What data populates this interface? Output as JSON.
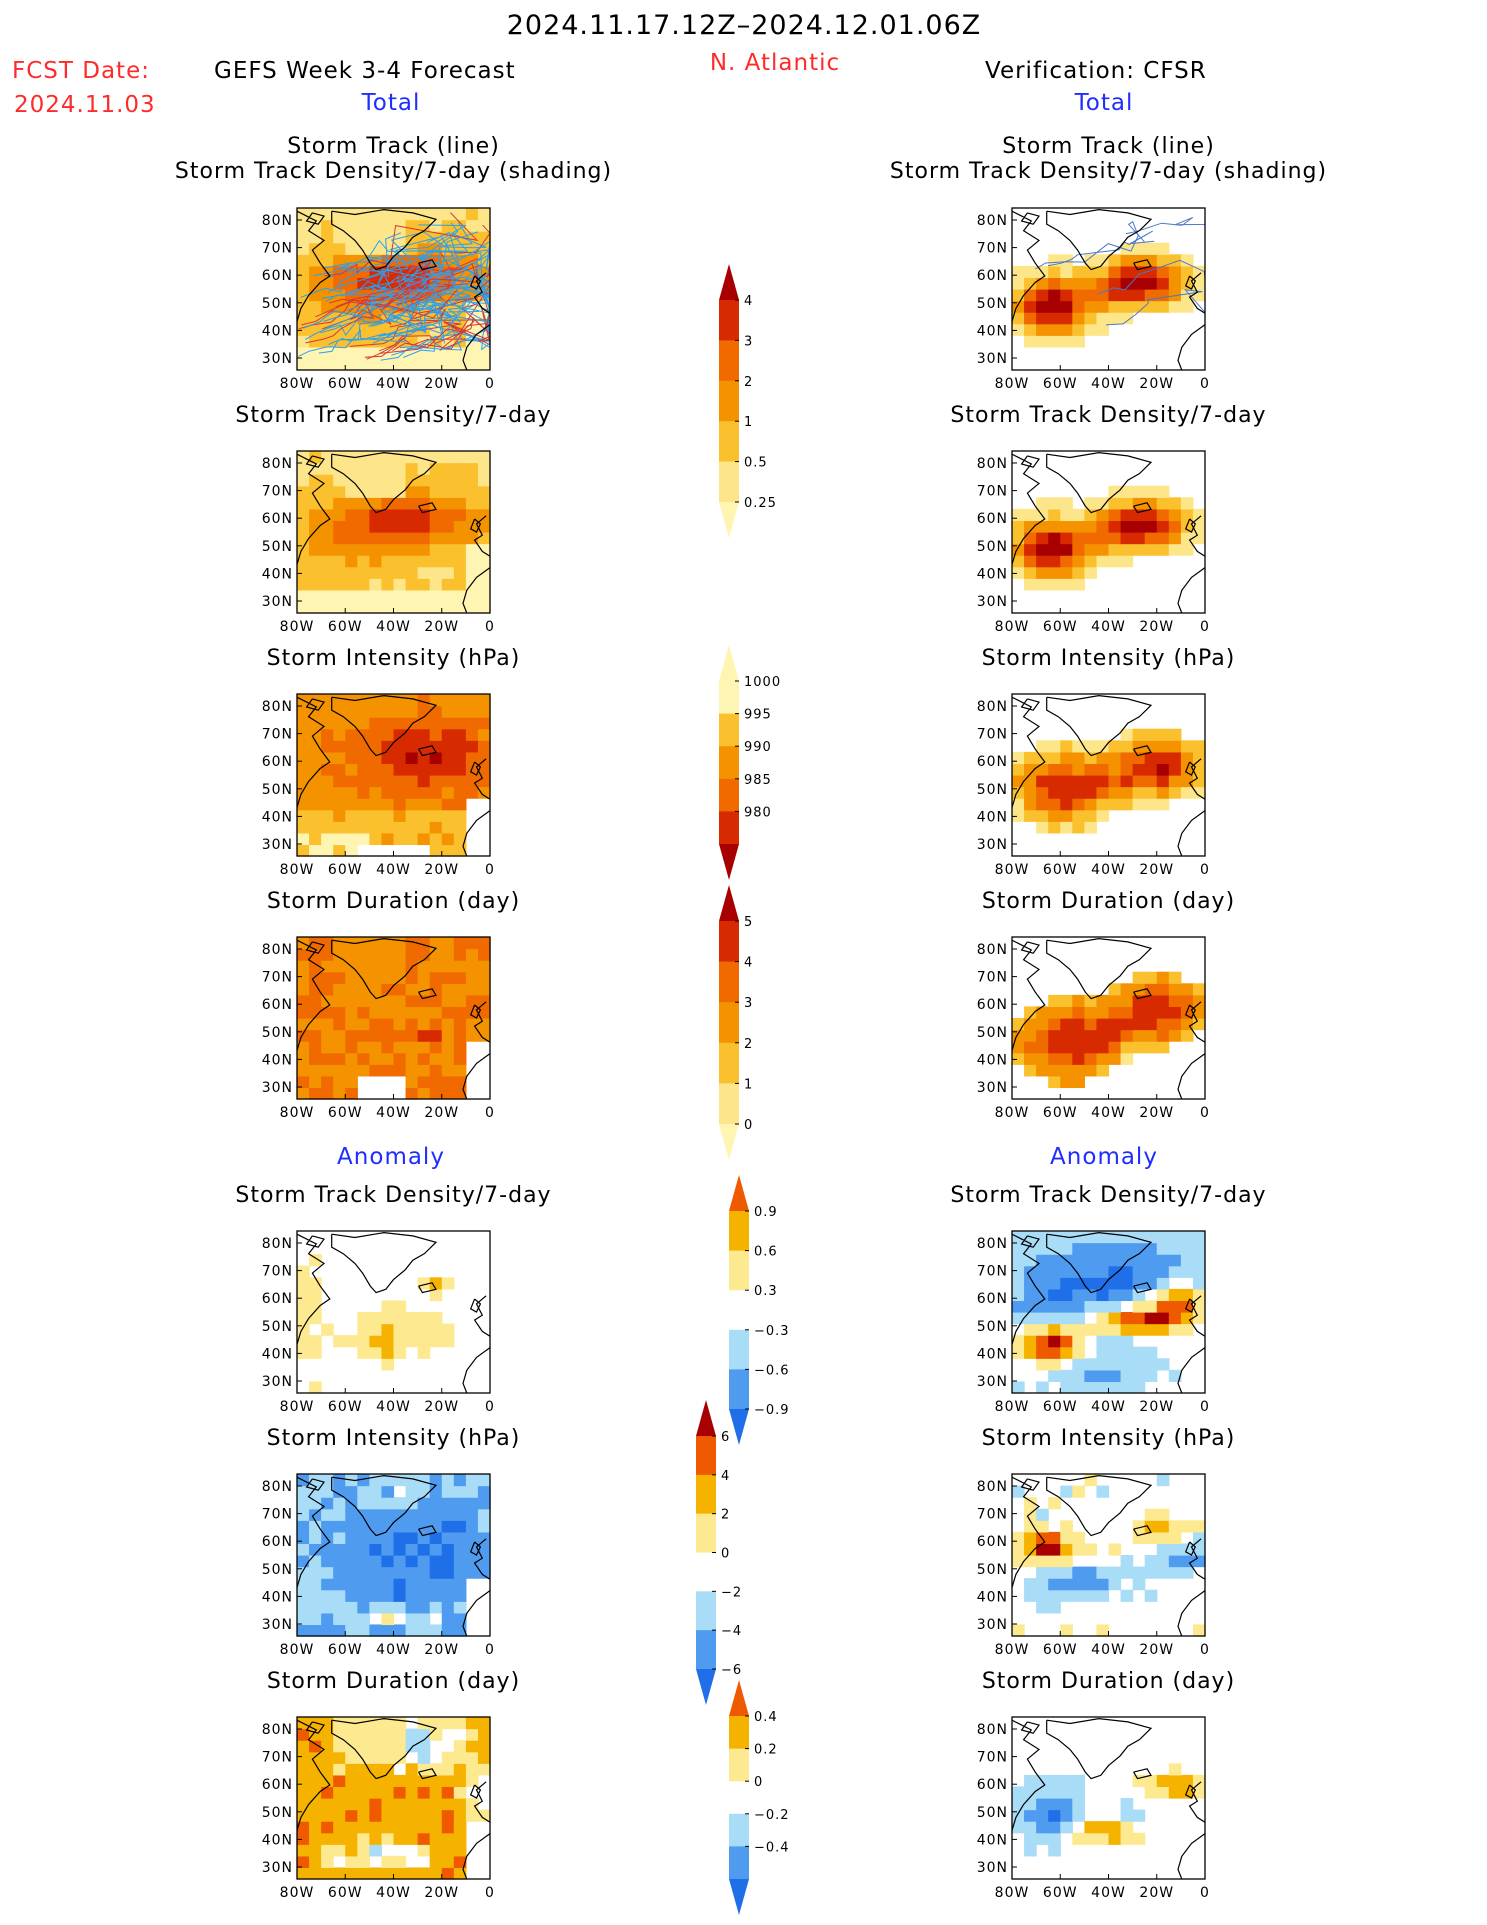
{
  "header": {
    "date_range": "2024.11.17.12Z–2024.12.01.06Z",
    "fcst_date_label": "FCST Date:",
    "fcst_date_value": "2024.11.03",
    "forecast_title": "GEFS Week 3-4 Forecast",
    "region": "N. Atlantic",
    "verification_title": "Verification: CFSR",
    "total_left": "Total",
    "total_right": "Total",
    "anomaly_left": "Anomaly",
    "anomaly_right": "Anomaly"
  },
  "colors": {
    "title_red": "#ff2a2a",
    "subtitle_blue": "#1f2eff",
    "density_scale": [
      "#fff5b3",
      "#fde68a",
      "#fbc02d",
      "#f59200",
      "#f06a00",
      "#d72a00",
      "#a80000"
    ],
    "anomaly_scale": [
      "#1e6fe8",
      "#4f9bf0",
      "#a9dcf7",
      "#ffffff",
      "#fde98f",
      "#f5b300",
      "#ef5a00",
      "#a80000"
    ]
  },
  "chart_data": [
    {
      "type": "heatmap",
      "panel": "forecast_total_track",
      "title": "Storm Track (line)",
      "subtitle": "Storm Track Density/7-day (shading)",
      "xticks": [
        "80W",
        "60W",
        "40W",
        "20W",
        "0"
      ],
      "yticks": [
        "80N",
        "70N",
        "60N",
        "50N",
        "40N",
        "30N"
      ],
      "xlim": [
        -80,
        0
      ],
      "ylim": [
        25,
        85
      ]
    },
    {
      "type": "heatmap",
      "panel": "verif_total_track",
      "title": "Storm Track (line)",
      "subtitle": "Storm Track Density/7-day (shading)",
      "xticks": [
        "80W",
        "60W",
        "40W",
        "20W",
        "0"
      ],
      "yticks": [
        "80N",
        "70N",
        "60N",
        "50N",
        "40N",
        "30N"
      ],
      "xlim": [
        -80,
        0
      ],
      "ylim": [
        25,
        85
      ]
    },
    {
      "type": "heatmap",
      "panel": "forecast_total_density",
      "title": "Storm Track Density/7-day",
      "xticks": [
        "80W",
        "60W",
        "40W",
        "20W",
        "0"
      ],
      "yticks": [
        "80N",
        "70N",
        "60N",
        "50N",
        "40N",
        "30N"
      ],
      "xlim": [
        -80,
        0
      ],
      "ylim": [
        25,
        85
      ]
    },
    {
      "type": "heatmap",
      "panel": "verif_total_density",
      "title": "Storm Track Density/7-day",
      "xticks": [
        "80W",
        "60W",
        "40W",
        "20W",
        "0"
      ],
      "yticks": [
        "80N",
        "70N",
        "60N",
        "50N",
        "40N",
        "30N"
      ],
      "xlim": [
        -80,
        0
      ],
      "ylim": [
        25,
        85
      ]
    },
    {
      "type": "heatmap",
      "panel": "forecast_total_intensity",
      "title": "Storm Intensity (hPa)",
      "xticks": [
        "80W",
        "60W",
        "40W",
        "20W",
        "0"
      ],
      "yticks": [
        "80N",
        "70N",
        "60N",
        "50N",
        "40N",
        "30N"
      ],
      "xlim": [
        -80,
        0
      ],
      "ylim": [
        25,
        85
      ]
    },
    {
      "type": "heatmap",
      "panel": "verif_total_intensity",
      "title": "Storm Intensity (hPa)",
      "xticks": [
        "80W",
        "60W",
        "40W",
        "20W",
        "0"
      ],
      "yticks": [
        "80N",
        "70N",
        "60N",
        "50N",
        "40N",
        "30N"
      ],
      "xlim": [
        -80,
        0
      ],
      "ylim": [
        25,
        85
      ]
    },
    {
      "type": "heatmap",
      "panel": "forecast_total_duration",
      "title": "Storm Duration (day)",
      "xticks": [
        "80W",
        "60W",
        "40W",
        "20W",
        "0"
      ],
      "yticks": [
        "80N",
        "70N",
        "60N",
        "50N",
        "40N",
        "30N"
      ],
      "xlim": [
        -80,
        0
      ],
      "ylim": [
        25,
        85
      ]
    },
    {
      "type": "heatmap",
      "panel": "verif_total_duration",
      "title": "Storm Duration (day)",
      "xticks": [
        "80W",
        "60W",
        "40W",
        "20W",
        "0"
      ],
      "yticks": [
        "80N",
        "70N",
        "60N",
        "50N",
        "40N",
        "30N"
      ],
      "xlim": [
        -80,
        0
      ],
      "ylim": [
        25,
        85
      ]
    },
    {
      "type": "heatmap",
      "panel": "forecast_anom_density",
      "title": "Storm Track Density/7-day",
      "xticks": [
        "80W",
        "60W",
        "40W",
        "20W",
        "0"
      ],
      "yticks": [
        "80N",
        "70N",
        "60N",
        "50N",
        "40N",
        "30N"
      ],
      "xlim": [
        -80,
        0
      ],
      "ylim": [
        25,
        85
      ]
    },
    {
      "type": "heatmap",
      "panel": "verif_anom_density",
      "title": "Storm Track Density/7-day",
      "xticks": [
        "80W",
        "60W",
        "40W",
        "20W",
        "0"
      ],
      "yticks": [
        "80N",
        "70N",
        "60N",
        "50N",
        "40N",
        "30N"
      ],
      "xlim": [
        -80,
        0
      ],
      "ylim": [
        25,
        85
      ]
    },
    {
      "type": "heatmap",
      "panel": "forecast_anom_intensity",
      "title": "Storm Intensity (hPa)",
      "xticks": [
        "80W",
        "60W",
        "40W",
        "20W",
        "0"
      ],
      "yticks": [
        "80N",
        "70N",
        "60N",
        "50N",
        "40N",
        "30N"
      ],
      "xlim": [
        -80,
        0
      ],
      "ylim": [
        25,
        85
      ]
    },
    {
      "type": "heatmap",
      "panel": "verif_anom_intensity",
      "title": "Storm Intensity (hPa)",
      "xticks": [
        "80W",
        "60W",
        "40W",
        "20W",
        "0"
      ],
      "yticks": [
        "80N",
        "70N",
        "60N",
        "50N",
        "40N",
        "30N"
      ],
      "xlim": [
        -80,
        0
      ],
      "ylim": [
        25,
        85
      ]
    },
    {
      "type": "heatmap",
      "panel": "forecast_anom_duration",
      "title": "Storm Duration (day)",
      "xticks": [
        "80W",
        "60W",
        "40W",
        "20W",
        "0"
      ],
      "yticks": [
        "80N",
        "70N",
        "60N",
        "50N",
        "40N",
        "30N"
      ],
      "xlim": [
        -80,
        0
      ],
      "ylim": [
        25,
        85
      ]
    },
    {
      "type": "heatmap",
      "panel": "verif_anom_duration",
      "title": "Storm Duration (day)",
      "xticks": [
        "80W",
        "60W",
        "40W",
        "20W",
        "0"
      ],
      "yticks": [
        "80N",
        "70N",
        "60N",
        "50N",
        "40N",
        "30N"
      ],
      "xlim": [
        -80,
        0
      ],
      "ylim": [
        25,
        85
      ]
    }
  ],
  "colorbars": [
    {
      "name": "total-density-colorbar",
      "labels": [
        "4",
        "3",
        "2",
        "1",
        "0.5",
        "0.25"
      ]
    },
    {
      "name": "total-intensity-colorbar",
      "labels": [
        "1000",
        "995",
        "990",
        "985",
        "980"
      ]
    },
    {
      "name": "total-duration-colorbar",
      "labels": [
        "5",
        "4",
        "3",
        "2",
        "1",
        "0"
      ]
    },
    {
      "name": "anomaly-density-colorbar",
      "labels": [
        "0.9",
        "0.6",
        "0.3",
        "−0.3",
        "−0.6",
        "−0.9"
      ]
    },
    {
      "name": "anomaly-intensity-colorbar",
      "labels": [
        "6",
        "4",
        "2",
        "0",
        "−2",
        "−4",
        "−6"
      ]
    },
    {
      "name": "anomaly-duration-colorbar",
      "labels": [
        "0.4",
        "0.2",
        "0",
        "−0.2",
        "−0.4"
      ]
    }
  ]
}
